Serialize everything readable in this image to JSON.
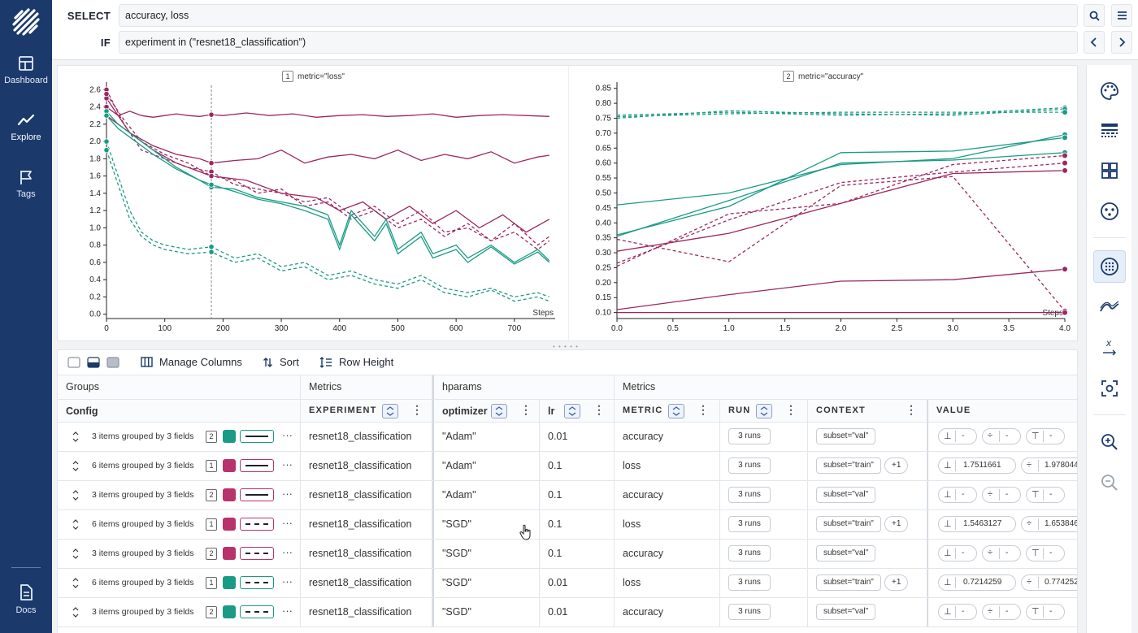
{
  "nav": {
    "items": [
      {
        "label": "Dashboard",
        "icon": "dashboard-icon"
      },
      {
        "label": "Explore",
        "icon": "explore-icon"
      },
      {
        "label": "Tags",
        "icon": "flag-icon"
      },
      {
        "label": "Docs",
        "icon": "document-icon"
      }
    ]
  },
  "query": {
    "select_label": "SELECT",
    "select_value": "accuracy, loss",
    "if_label": "IF",
    "if_value": "experiment in (\"resnet18_classification\")"
  },
  "charts": [
    {
      "index": "1",
      "title": "metric=\"loss\"",
      "x_axis_label": "Steps",
      "chart_data": {
        "type": "line",
        "xlim": [
          0,
          770
        ],
        "ylim": [
          -0.05,
          2.65
        ],
        "x_ticks": [
          "0",
          "100",
          "200",
          "300",
          "400",
          "500",
          "600",
          "700"
        ],
        "y_ticks": [
          "0.0",
          "0.2",
          "0.4",
          "0.6",
          "0.8",
          "1.0",
          "1.2",
          "1.4",
          "1.6",
          "1.8",
          "2.0",
          "2.2",
          "2.4",
          "2.6"
        ],
        "cursor_x": 180,
        "series": [
          {
            "color": "#9c2760",
            "dash": false,
            "x": [
              0,
              20,
              40,
              60,
              80,
              100,
              120,
              140,
              160,
              180,
              200,
              240,
              280,
              320,
              360,
              400,
              440,
              480,
              520,
              560,
              600,
              640,
              680,
              720,
              760
            ],
            "y": [
              2.4,
              2.3,
              2.35,
              2.3,
              2.28,
              2.3,
              2.32,
              2.3,
              2.29,
              2.31,
              2.3,
              2.33,
              2.3,
              2.32,
              2.28,
              2.3,
              2.31,
              2.29,
              2.3,
              2.32,
              2.28,
              2.3,
              2.31,
              2.3,
              2.29
            ]
          },
          {
            "color": "#9c2760",
            "dash": false,
            "x": [
              0,
              20,
              40,
              80,
              120,
              160,
              180,
              220,
              260,
              300,
              340,
              380,
              420,
              460,
              500,
              540,
              580,
              620,
              660,
              700,
              740,
              760
            ],
            "y": [
              2.3,
              2.2,
              2.1,
              1.95,
              1.85,
              1.8,
              1.75,
              1.78,
              1.8,
              1.9,
              1.75,
              1.82,
              1.85,
              1.8,
              1.9,
              1.78,
              1.85,
              1.8,
              1.88,
              1.75,
              1.82,
              1.84
            ]
          },
          {
            "color": "#9c2760",
            "dash": false,
            "x": [
              0,
              40,
              80,
              120,
              180,
              240,
              300,
              360,
              400,
              440,
              480,
              520,
              560,
              600,
              640,
              680,
              720,
              760
            ],
            "y": [
              2.5,
              2.1,
              1.9,
              1.75,
              1.6,
              1.55,
              1.4,
              1.35,
              1.2,
              1.3,
              1.1,
              1.25,
              1.05,
              1.2,
              1.0,
              1.15,
              0.95,
              1.1
            ]
          },
          {
            "color": "#9c2760",
            "dash": true,
            "x": [
              0,
              30,
              60,
              100,
              140,
              180,
              220,
              260,
              300,
              340,
              380,
              420,
              460,
              500,
              540,
              580,
              620,
              660,
              700,
              740,
              760
            ],
            "y": [
              2.6,
              2.2,
              1.9,
              1.8,
              1.7,
              1.65,
              1.5,
              1.45,
              1.4,
              1.3,
              1.35,
              1.15,
              1.25,
              1.05,
              1.2,
              0.95,
              1.0,
              0.85,
              1.05,
              0.8,
              0.9
            ]
          },
          {
            "color": "#9c2760",
            "dash": true,
            "x": [
              0,
              30,
              60,
              100,
              140,
              180,
              220,
              260,
              300,
              340,
              380,
              420,
              460,
              500,
              540,
              580,
              620,
              660,
              700,
              740,
              760
            ],
            "y": [
              2.55,
              2.25,
              2.0,
              1.85,
              1.75,
              1.6,
              1.55,
              1.4,
              1.45,
              1.25,
              1.3,
              1.1,
              1.2,
              1.0,
              1.1,
              0.9,
              1.05,
              0.85,
              0.95,
              0.75,
              0.85
            ]
          },
          {
            "color": "#1a9b86",
            "dash": false,
            "x": [
              0,
              20,
              40,
              80,
              120,
              160,
              180,
              220,
              260,
              300,
              340,
              380,
              400,
              420,
              460,
              480,
              500,
              540,
              560,
              600,
              620,
              660,
              700,
              740,
              760
            ],
            "y": [
              2.35,
              2.2,
              2.1,
              1.9,
              1.7,
              1.55,
              1.47,
              1.45,
              1.35,
              1.3,
              1.25,
              1.15,
              0.8,
              1.2,
              0.9,
              1.1,
              0.75,
              0.95,
              0.7,
              0.8,
              0.65,
              0.8,
              0.6,
              0.75,
              0.62
            ]
          },
          {
            "color": "#1a9b86",
            "dash": false,
            "x": [
              0,
              20,
              40,
              80,
              120,
              160,
              180,
              220,
              260,
              300,
              340,
              380,
              400,
              420,
              460,
              480,
              500,
              540,
              560,
              600,
              620,
              660,
              700,
              740,
              760
            ],
            "y": [
              2.3,
              2.15,
              2.05,
              1.85,
              1.68,
              1.55,
              1.5,
              1.42,
              1.33,
              1.28,
              1.2,
              1.1,
              0.75,
              1.15,
              0.85,
              1.05,
              0.7,
              0.9,
              0.65,
              0.75,
              0.6,
              0.78,
              0.58,
              0.72,
              0.6
            ]
          },
          {
            "color": "#1a9b86",
            "dash": true,
            "x": [
              0,
              20,
              40,
              60,
              80,
              100,
              140,
              180,
              220,
              260,
              300,
              340,
              380,
              420,
              460,
              500,
              540,
              580,
              620,
              660,
              700,
              740,
              760
            ],
            "y": [
              2.0,
              1.6,
              1.2,
              0.95,
              0.85,
              0.8,
              0.75,
              0.78,
              0.65,
              0.7,
              0.55,
              0.6,
              0.45,
              0.5,
              0.4,
              0.35,
              0.45,
              0.3,
              0.25,
              0.3,
              0.2,
              0.25,
              0.2
            ]
          },
          {
            "color": "#1a9b86",
            "dash": true,
            "x": [
              0,
              20,
              40,
              60,
              80,
              100,
              140,
              180,
              220,
              260,
              300,
              340,
              380,
              420,
              460,
              500,
              540,
              580,
              620,
              660,
              700,
              740,
              760
            ],
            "y": [
              1.9,
              1.5,
              1.1,
              0.9,
              0.8,
              0.75,
              0.7,
              0.72,
              0.6,
              0.65,
              0.5,
              0.55,
              0.4,
              0.45,
              0.35,
              0.3,
              0.4,
              0.25,
              0.2,
              0.28,
              0.15,
              0.2,
              0.15
            ]
          }
        ]
      }
    },
    {
      "index": "2",
      "title": "metric=\"accuracy\"",
      "x_axis_label": "Steps",
      "chart_data": {
        "type": "line",
        "xlim": [
          0,
          4
        ],
        "ylim": [
          0.08,
          0.86
        ],
        "x_ticks": [
          "0.0",
          "0.5",
          "1.0",
          "1.5",
          "2.0",
          "2.5",
          "3.0",
          "3.5",
          "4.0"
        ],
        "y_ticks": [
          "0.10",
          "0.15",
          "0.20",
          "0.25",
          "0.30",
          "0.35",
          "0.40",
          "0.45",
          "0.50",
          "0.55",
          "0.60",
          "0.65",
          "0.70",
          "0.75",
          "0.80",
          "0.85"
        ],
        "series": [
          {
            "color": "#1a9b86",
            "dash": true,
            "x": [
              0,
              1,
              2,
              3,
              4
            ],
            "y": [
              0.76,
              0.77,
              0.76,
              0.765,
              0.785
            ]
          },
          {
            "color": "#1a9b86",
            "dash": true,
            "x": [
              0,
              1,
              2,
              3,
              4
            ],
            "y": [
              0.75,
              0.775,
              0.765,
              0.76,
              0.78
            ]
          },
          {
            "color": "#1a9b86",
            "dash": true,
            "x": [
              0,
              1,
              2,
              3,
              4
            ],
            "y": [
              0.755,
              0.765,
              0.77,
              0.77,
              0.77
            ]
          },
          {
            "color": "#1a9b86",
            "dash": false,
            "x": [
              0,
              1,
              2,
              3,
              4
            ],
            "y": [
              0.46,
              0.5,
              0.595,
              0.615,
              0.695
            ]
          },
          {
            "color": "#1a9b86",
            "dash": false,
            "x": [
              0,
              1,
              2,
              3,
              4
            ],
            "y": [
              0.36,
              0.455,
              0.635,
              0.64,
              0.685
            ]
          },
          {
            "color": "#1a9b86",
            "dash": false,
            "x": [
              0,
              1,
              2,
              3,
              4
            ],
            "y": [
              0.355,
              0.475,
              0.6,
              0.61,
              0.635
            ]
          },
          {
            "color": "#9c2760",
            "dash": true,
            "x": [
              0,
              1,
              2,
              3,
              4
            ],
            "y": [
              0.345,
              0.27,
              0.525,
              0.555,
              0.105
            ]
          },
          {
            "color": "#9c2760",
            "dash": true,
            "x": [
              0,
              1,
              2,
              3,
              4
            ],
            "y": [
              0.255,
              0.43,
              0.465,
              0.595,
              0.625
            ]
          },
          {
            "color": "#9c2760",
            "dash": true,
            "x": [
              0,
              1,
              2,
              3,
              4
            ],
            "y": [
              0.265,
              0.41,
              0.535,
              0.57,
              0.6
            ]
          },
          {
            "color": "#9c2760",
            "dash": false,
            "x": [
              0,
              1,
              2,
              3,
              4
            ],
            "y": [
              0.305,
              0.365,
              0.465,
              0.565,
              0.575
            ]
          },
          {
            "color": "#9c2760",
            "dash": false,
            "x": [
              0,
              1,
              2,
              3,
              4
            ],
            "y": [
              0.11,
              0.16,
              0.205,
              0.21,
              0.245
            ]
          },
          {
            "color": "#9c2760",
            "dash": false,
            "x": [
              0,
              1,
              2,
              3,
              4
            ],
            "y": [
              0.1,
              0.1,
              0.1,
              0.1,
              0.1
            ]
          }
        ]
      }
    }
  ],
  "toolbar": {
    "manage_columns": "Manage Columns",
    "sort": "Sort",
    "row_height": "Row Height"
  },
  "table": {
    "groups": {
      "g1": "Groups",
      "g2": "Metrics",
      "g3": "hparams",
      "g4": "Metrics"
    },
    "columns": {
      "config": "Config",
      "experiment": "EXPERIMENT",
      "optimizer": "optimizer",
      "lr": "lr",
      "metric": "METRIC",
      "run": "RUN",
      "context": "CONTEXT",
      "value": "VALUE"
    },
    "rows": [
      {
        "config": "3 items grouped by 3 fields",
        "chart": "2",
        "color": "#1a9b86",
        "dash": false,
        "experiment": "resnet18_classification",
        "optimizer": "\"Adam\"",
        "lr": "0.01",
        "metric": "accuracy",
        "run": "3 runs",
        "context": "subset=\"val\"",
        "context_extra": "",
        "v1": "-",
        "v2": "-",
        "v3": "-"
      },
      {
        "config": "6 items grouped by 3 fields",
        "chart": "1",
        "color": "#b8336a",
        "dash": false,
        "experiment": "resnet18_classification",
        "optimizer": "\"Adam\"",
        "lr": "0.1",
        "metric": "loss",
        "run": "3 runs",
        "context": "subset=\"train\"",
        "context_extra": "+1",
        "v1": "1.7511661",
        "v2": "1.978044",
        "v3": ""
      },
      {
        "config": "3 items grouped by 3 fields",
        "chart": "2",
        "color": "#b8336a",
        "dash": false,
        "experiment": "resnet18_classification",
        "optimizer": "\"Adam\"",
        "lr": "0.1",
        "metric": "accuracy",
        "run": "3 runs",
        "context": "subset=\"val\"",
        "context_extra": "",
        "v1": "-",
        "v2": "-",
        "v3": "-"
      },
      {
        "config": "6 items grouped by 3 fields",
        "chart": "1",
        "color": "#b8336a",
        "dash": true,
        "experiment": "resnet18_classification",
        "optimizer": "\"SGD\"",
        "lr": "0.1",
        "metric": "loss",
        "run": "3 runs",
        "context": "subset=\"train\"",
        "context_extra": "+1",
        "v1": "1.5463127",
        "v2": "1.653846",
        "v3": ""
      },
      {
        "config": "3 items grouped by 3 fields",
        "chart": "2",
        "color": "#b8336a",
        "dash": true,
        "experiment": "resnet18_classification",
        "optimizer": "\"SGD\"",
        "lr": "0.1",
        "metric": "accuracy",
        "run": "3 runs",
        "context": "subset=\"val\"",
        "context_extra": "",
        "v1": "-",
        "v2": "-",
        "v3": "-"
      },
      {
        "config": "6 items grouped by 3 fields",
        "chart": "1",
        "color": "#1a9b86",
        "dash": true,
        "experiment": "resnet18_classification",
        "optimizer": "\"SGD\"",
        "lr": "0.01",
        "metric": "loss",
        "run": "3 runs",
        "context": "subset=\"train\"",
        "context_extra": "+1",
        "v1": "0.7214259",
        "v2": "0.774252",
        "v3": ""
      },
      {
        "config": "3 items grouped by 3 fields",
        "chart": "2",
        "color": "#1a9b86",
        "dash": true,
        "experiment": "resnet18_classification",
        "optimizer": "\"SGD\"",
        "lr": "0.01",
        "metric": "accuracy",
        "run": "3 runs",
        "context": "subset=\"val\"",
        "context_extra": "",
        "v1": "-",
        "v2": "-",
        "v3": "-"
      }
    ]
  },
  "rail": {
    "buttons": [
      "palette-icon",
      "stroke-style-icon",
      "grid-layout-icon",
      "aggregation-icon",
      "highlight-mode-icon",
      "smoothing-icon",
      "x-axis-icon",
      "zoom-select-icon",
      "zoom-in-icon",
      "zoom-out-icon"
    ]
  },
  "colors": {
    "sidebar": "#1b3a6b",
    "green": "#1a9b86",
    "magenta": "#9c2760",
    "accent": "#3b5fa0"
  }
}
